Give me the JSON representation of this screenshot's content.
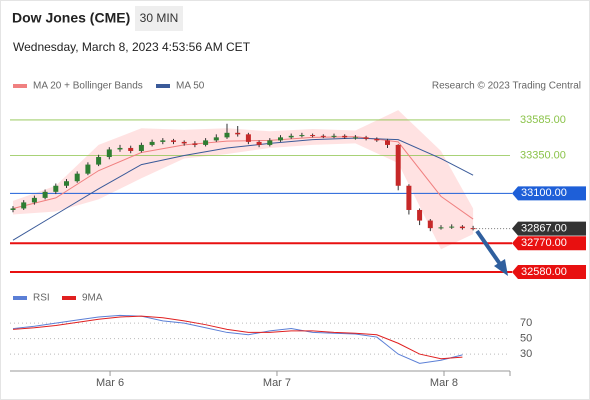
{
  "chart_data": {
    "type": "candlestick",
    "title": "Dow Jones (CME)",
    "timeframe": "30 MIN",
    "subtitle": "Wednesday, March 8, 2023 4:53:56 AM CET",
    "source": "Research © 2023 Trading Central",
    "ylim": [
      32494,
      33750
    ],
    "candles": [
      [
        32990,
        33015,
        32975,
        33000
      ],
      [
        33000,
        33055,
        32990,
        33040
      ],
      [
        33040,
        33085,
        33025,
        33070
      ],
      [
        33070,
        33125,
        33060,
        33110
      ],
      [
        33110,
        33165,
        33095,
        33150
      ],
      [
        33150,
        33195,
        33135,
        33180
      ],
      [
        33180,
        33245,
        33170,
        33230
      ],
      [
        33230,
        33305,
        33220,
        33290
      ],
      [
        33290,
        33355,
        33280,
        33340
      ],
      [
        33340,
        33405,
        33325,
        33390
      ],
      [
        33390,
        33420,
        33375,
        33400
      ],
      [
        33400,
        33415,
        33365,
        33380
      ],
      [
        33380,
        33435,
        33370,
        33420
      ],
      [
        33420,
        33455,
        33410,
        33440
      ],
      [
        33440,
        33465,
        33425,
        33450
      ],
      [
        33450,
        33460,
        33425,
        33440
      ],
      [
        33440,
        33450,
        33415,
        33430
      ],
      [
        33430,
        33445,
        33405,
        33420
      ],
      [
        33420,
        33465,
        33410,
        33450
      ],
      [
        33450,
        33490,
        33440,
        33470
      ],
      [
        33470,
        33560,
        33460,
        33500
      ],
      [
        33500,
        33545,
        33475,
        33490
      ],
      [
        33490,
        33500,
        33425,
        33440
      ],
      [
        33440,
        33450,
        33405,
        33420
      ],
      [
        33420,
        33465,
        33410,
        33450
      ],
      [
        33450,
        33485,
        33440,
        33470
      ],
      [
        33470,
        33495,
        33460,
        33480
      ],
      [
        33480,
        33500,
        33470,
        33485
      ],
      [
        33485,
        33495,
        33470,
        33480
      ],
      [
        33480,
        33490,
        33465,
        33475
      ],
      [
        33475,
        33495,
        33465,
        33480
      ],
      [
        33480,
        33490,
        33460,
        33470
      ],
      [
        33470,
        33485,
        33455,
        33470
      ],
      [
        33470,
        33480,
        33450,
        33460
      ],
      [
        33460,
        33470,
        33440,
        33450
      ],
      [
        33450,
        33460,
        33400,
        33420
      ],
      [
        33420,
        33425,
        33120,
        33150
      ],
      [
        33150,
        33160,
        32960,
        32990
      ],
      [
        32990,
        33000,
        32890,
        32920
      ],
      [
        32920,
        32930,
        32850,
        32870
      ],
      [
        32870,
        32890,
        32860,
        32875
      ],
      [
        32875,
        32895,
        32865,
        32880
      ],
      [
        32880,
        32890,
        32860,
        32870
      ],
      [
        32870,
        32885,
        32855,
        32867
      ]
    ],
    "up_color": "#2e7d32",
    "down_color": "#c62828",
    "ma_x": [
      0,
      4,
      8,
      12,
      16,
      20,
      24,
      28,
      32,
      36,
      40,
      43
    ],
    "series": [
      {
        "name": "MA 20 + Bollinger Bands",
        "color": "#f08080",
        "values": [
          33000,
          33070,
          33250,
          33370,
          33420,
          33445,
          33450,
          33470,
          33475,
          33440,
          33080,
          32930
        ]
      },
      {
        "name": "MA 50",
        "color": "#3a5a99",
        "values": [
          32790,
          32960,
          33130,
          33290,
          33350,
          33400,
          33430,
          33455,
          33465,
          33455,
          33330,
          33220
        ]
      }
    ],
    "bands": {
      "color": "#ffd5d5",
      "upper": [
        33050,
        33150,
        33420,
        33530,
        33520,
        33530,
        33510,
        33525,
        33515,
        33650,
        33380,
        33000
      ],
      "lower": [
        32960,
        32980,
        33060,
        33200,
        33330,
        33360,
        33400,
        33420,
        33430,
        33300,
        32730,
        32830
      ]
    },
    "levels": [
      {
        "value": 33585,
        "label": "33585.00",
        "color": "#8bc34a",
        "boxed": false
      },
      {
        "value": 33350,
        "label": "33350.00",
        "color": "#8bc34a",
        "boxed": false
      },
      {
        "value": 33100,
        "label": "33100.00",
        "color": "#1e5fd8",
        "boxed": true
      },
      {
        "value": 32770,
        "label": "32770.00",
        "color": "#e81010",
        "boxed": true
      },
      {
        "value": 32580,
        "label": "32580.00",
        "color": "#e81010",
        "boxed": true
      }
    ],
    "last_price": {
      "value": 32867,
      "label": "32867.00",
      "color": "#333333"
    },
    "x_labels": [
      {
        "value": 9.07,
        "label": "Mar 6"
      },
      {
        "value": 24.67,
        "label": "Mar 7"
      },
      {
        "value": 40.28,
        "label": "Mar 8"
      }
    ],
    "rsi": {
      "ylim": [
        12,
        87
      ],
      "yticks": [
        70,
        50,
        30
      ],
      "x": [
        0,
        2,
        4,
        6,
        8,
        10,
        12,
        14,
        16,
        18,
        20,
        22,
        24,
        26,
        28,
        30,
        32,
        34,
        36,
        38,
        40,
        42
      ],
      "series": [
        {
          "name": "RSI",
          "color": "#5b7fd6",
          "values": [
            63,
            66,
            70,
            74,
            78,
            80,
            79,
            73,
            70,
            64,
            58,
            55,
            60,
            63,
            58,
            57,
            56,
            52,
            30,
            18,
            22,
            29
          ]
        },
        {
          "name": "9MA",
          "color": "#e02020",
          "values": [
            62,
            64,
            67,
            71,
            75,
            78,
            79,
            77,
            73,
            68,
            62,
            58,
            58,
            60,
            60,
            58,
            57,
            55,
            44,
            30,
            24,
            26
          ]
        }
      ]
    }
  }
}
